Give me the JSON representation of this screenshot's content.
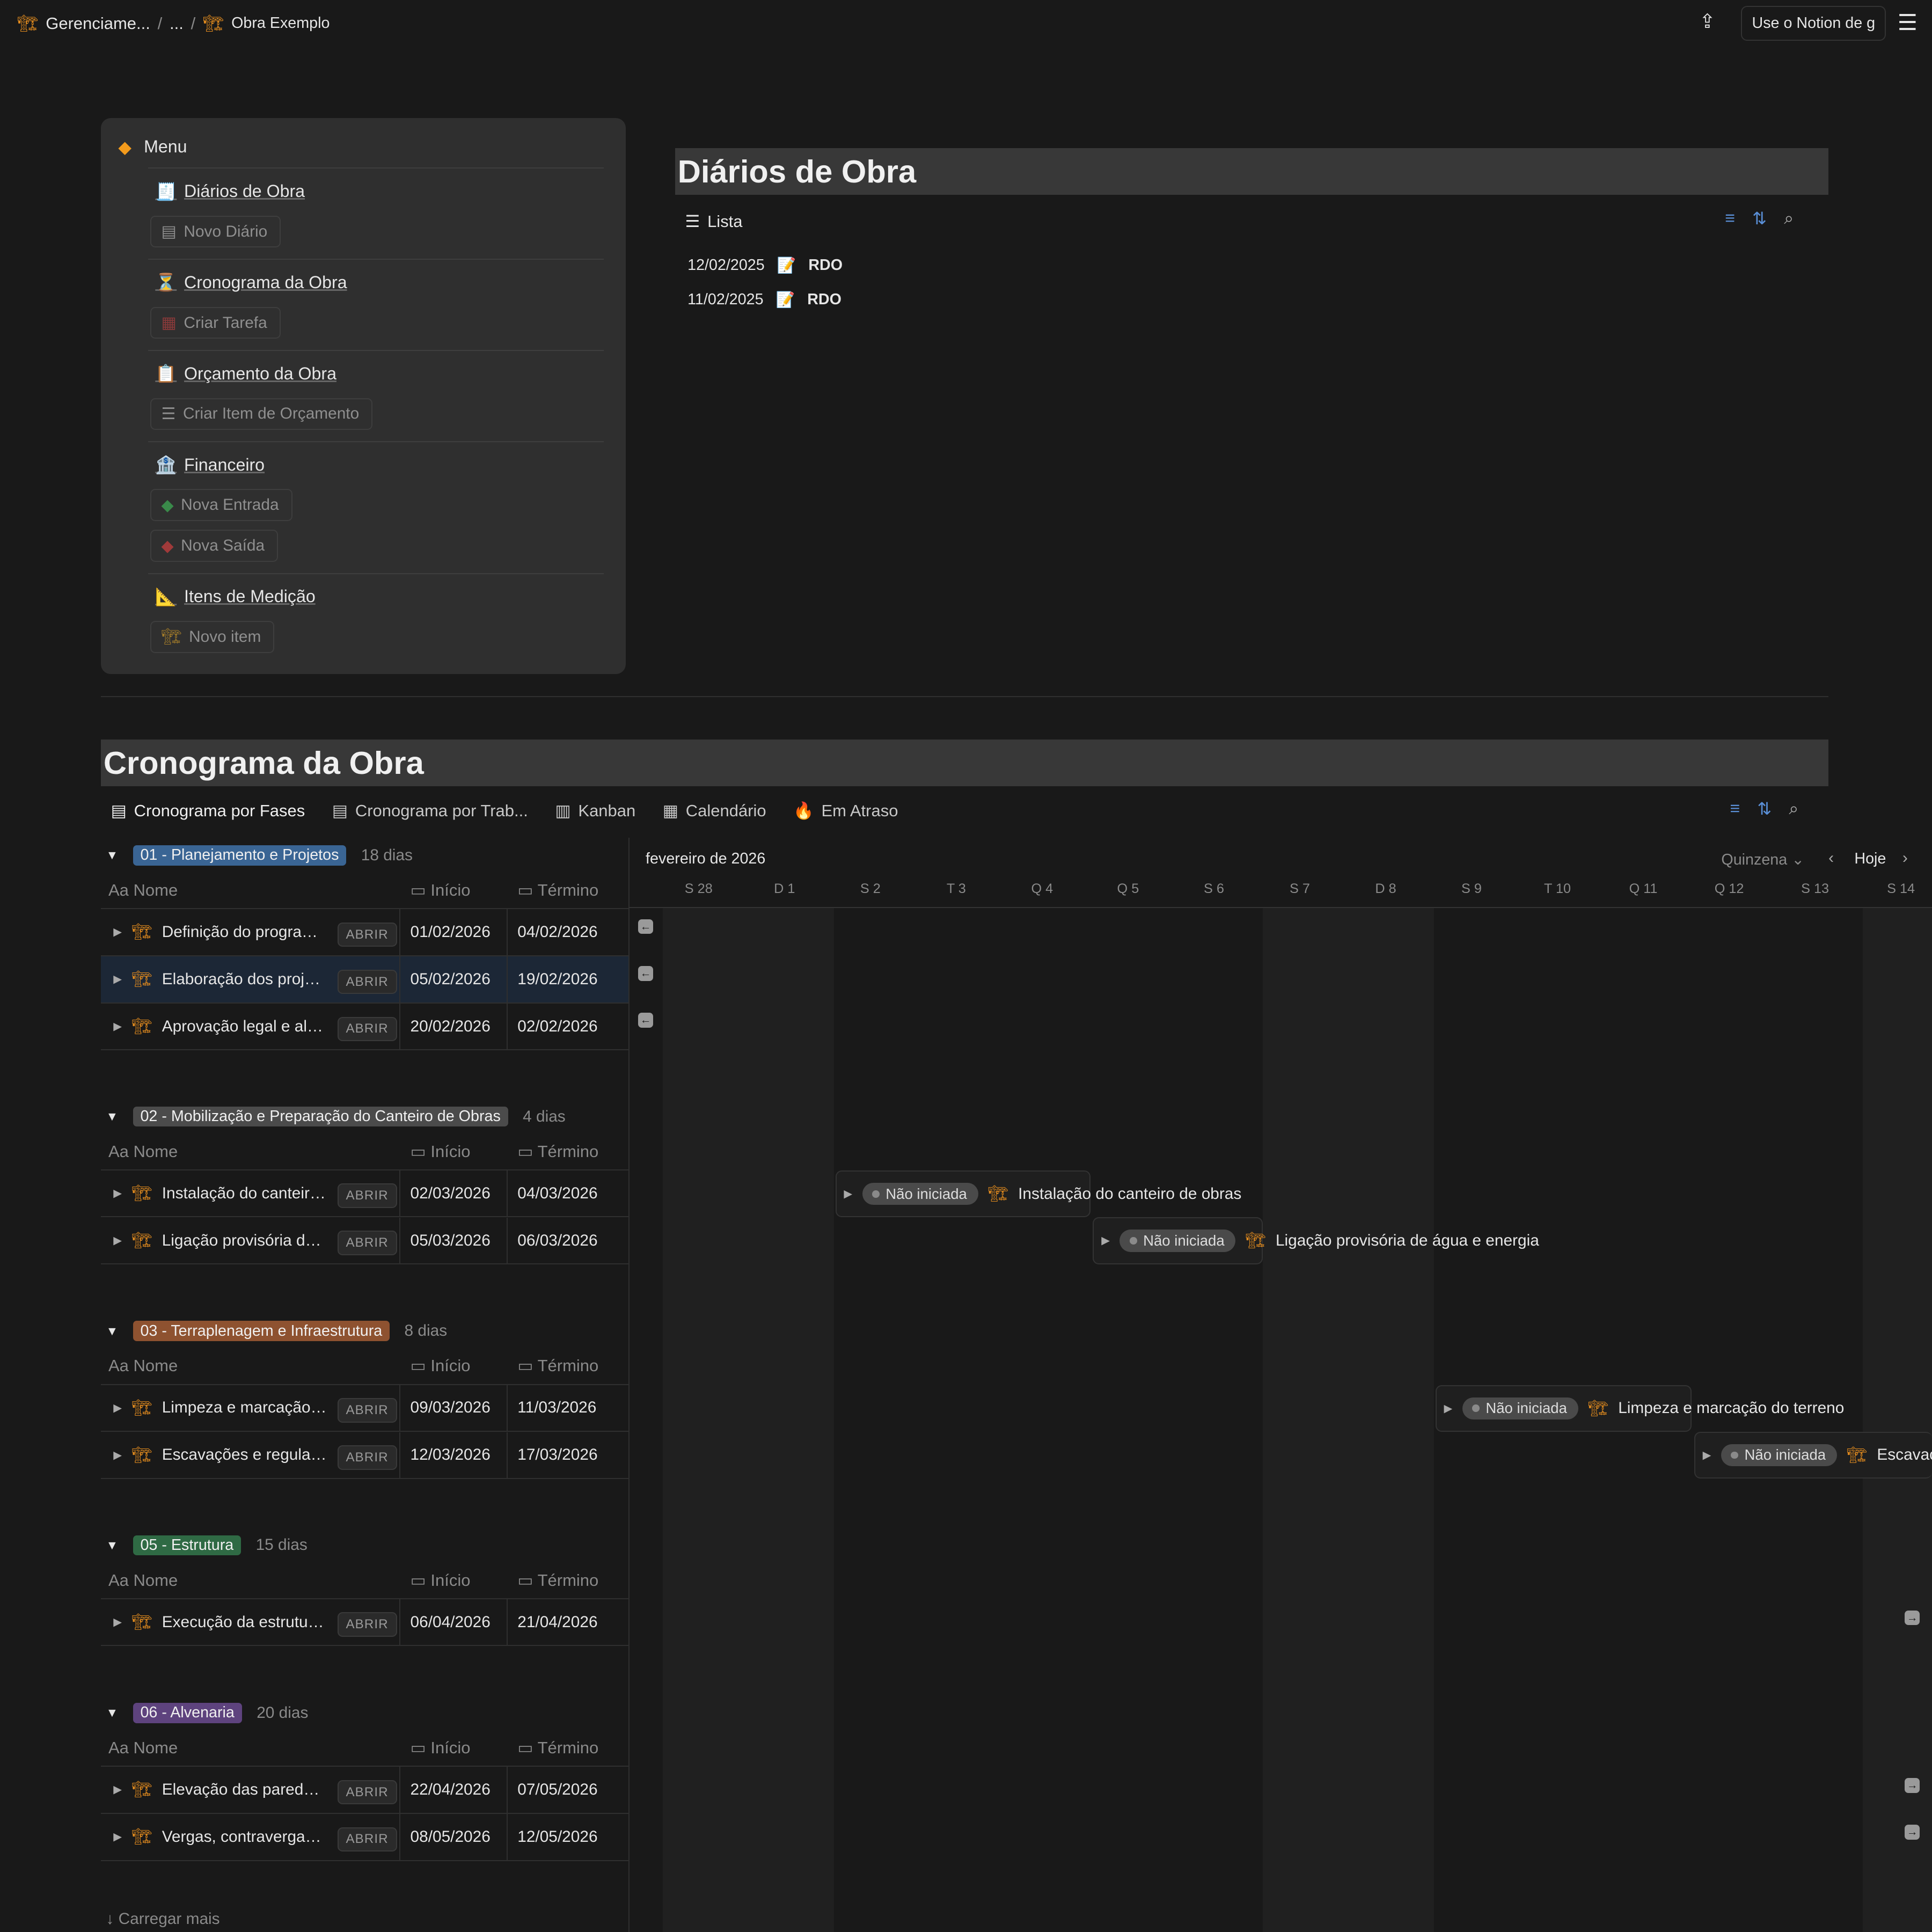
{
  "topbar": {
    "breadcrumb": [
      "Gerenciame...",
      "...",
      "Obra Exemplo"
    ],
    "notion_button": "Use o Notion de g"
  },
  "menu": {
    "title": "Menu",
    "sections": [
      {
        "title": "Diários de Obra",
        "icon": "receipt",
        "buttons": [
          "Novo Diário"
        ]
      },
      {
        "title": "Cronograma da Obra",
        "icon": "hourglass",
        "buttons": [
          "Criar Tarefa"
        ]
      },
      {
        "title": "Orçamento da Obra",
        "icon": "clipboard",
        "buttons": [
          "Criar Item de Orçamento"
        ]
      },
      {
        "title": "Financeiro",
        "icon": "bank",
        "buttons": [
          "Nova Entrada",
          "Nova Saída"
        ]
      },
      {
        "title": "Itens de Medição",
        "icon": "ruler",
        "buttons": [
          "Novo item"
        ]
      }
    ]
  },
  "diarios": {
    "title": "Diários de Obra",
    "view": "Lista",
    "items": [
      {
        "date": "12/02/2025",
        "name": "RDO"
      },
      {
        "date": "11/02/2025",
        "name": "RDO"
      }
    ]
  },
  "cronograma": {
    "title": "Cronograma da Obra",
    "tabs": [
      "Cronograma por Fases",
      "Cronograma por Trab...",
      "Kanban",
      "Calendário",
      "Em Atraso"
    ],
    "columns": {
      "name": "Nome",
      "start": "Início",
      "end": "Término"
    },
    "open_label": "ABRIR",
    "groups": [
      {
        "label": "01 - Planejamento e Projetos",
        "duration": "18 dias",
        "color": "#2f5f8f",
        "rows": [
          {
            "name": "Definição do programa de necessidades",
            "start": "01/02/2026",
            "end": "04/02/2026"
          },
          {
            "name": "Elaboração dos projetos",
            "start": "05/02/2026",
            "end": "19/02/2026"
          },
          {
            "name": "Aprovação legal e alvarás",
            "start": "20/02/2026",
            "end": "02/02/2026"
          }
        ]
      },
      {
        "label": "02 - Mobilização e Preparação do Canteiro de Obras",
        "duration": "4 dias",
        "color": "#4a4a4a",
        "rows": [
          {
            "name": "Instalação do canteiro de obras",
            "start": "02/03/2026",
            "end": "04/03/2026"
          },
          {
            "name": "Ligação provisória de água e energia",
            "start": "05/03/2026",
            "end": "06/03/2026"
          }
        ]
      },
      {
        "label": "03 - Terraplenagem e Infraestrutura",
        "duration": "8 dias",
        "color": "#8a4d26",
        "rows": [
          {
            "name": "Limpeza e marcação do terreno",
            "start": "09/03/2026",
            "end": "11/03/2026"
          },
          {
            "name": "Escavações e regularização",
            "start": "12/03/2026",
            "end": "17/03/2026"
          }
        ]
      },
      {
        "label": "05 - Estrutura",
        "duration": "15 dias",
        "color": "#2e5e3e",
        "rows": [
          {
            "name": "Execução da estrutura (pilares, vigas, lajes)",
            "start": "06/04/2026",
            "end": "21/04/2026"
          }
        ]
      },
      {
        "label": "06 - Alvenaria",
        "duration": "20 dias",
        "color": "#5a3f78",
        "rows": [
          {
            "name": "Elevação das paredes de alvenaria",
            "start": "22/04/2026",
            "end": "07/05/2026"
          },
          {
            "name": "Vergas, contravergas e amarrações",
            "start": "08/05/2026",
            "end": "12/05/2026"
          }
        ]
      }
    ],
    "load_more": "Carregar mais",
    "timeline": {
      "month": "fevereiro de 2026",
      "scale": "Quinzena",
      "today": "Hoje",
      "days": [
        "S 28",
        "D 1",
        "S 2",
        "T 3",
        "Q 4",
        "Q 5",
        "S 6",
        "S 7",
        "D 8",
        "S 9",
        "T 10",
        "Q 11",
        "Q 12",
        "S 13",
        "S 14"
      ],
      "status": "Não iniciada",
      "bars": [
        "Instalação do canteiro de obras",
        "Ligação provisória de água e energia",
        "Limpeza e marcação do terreno",
        "Escavações e regularização"
      ]
    }
  }
}
